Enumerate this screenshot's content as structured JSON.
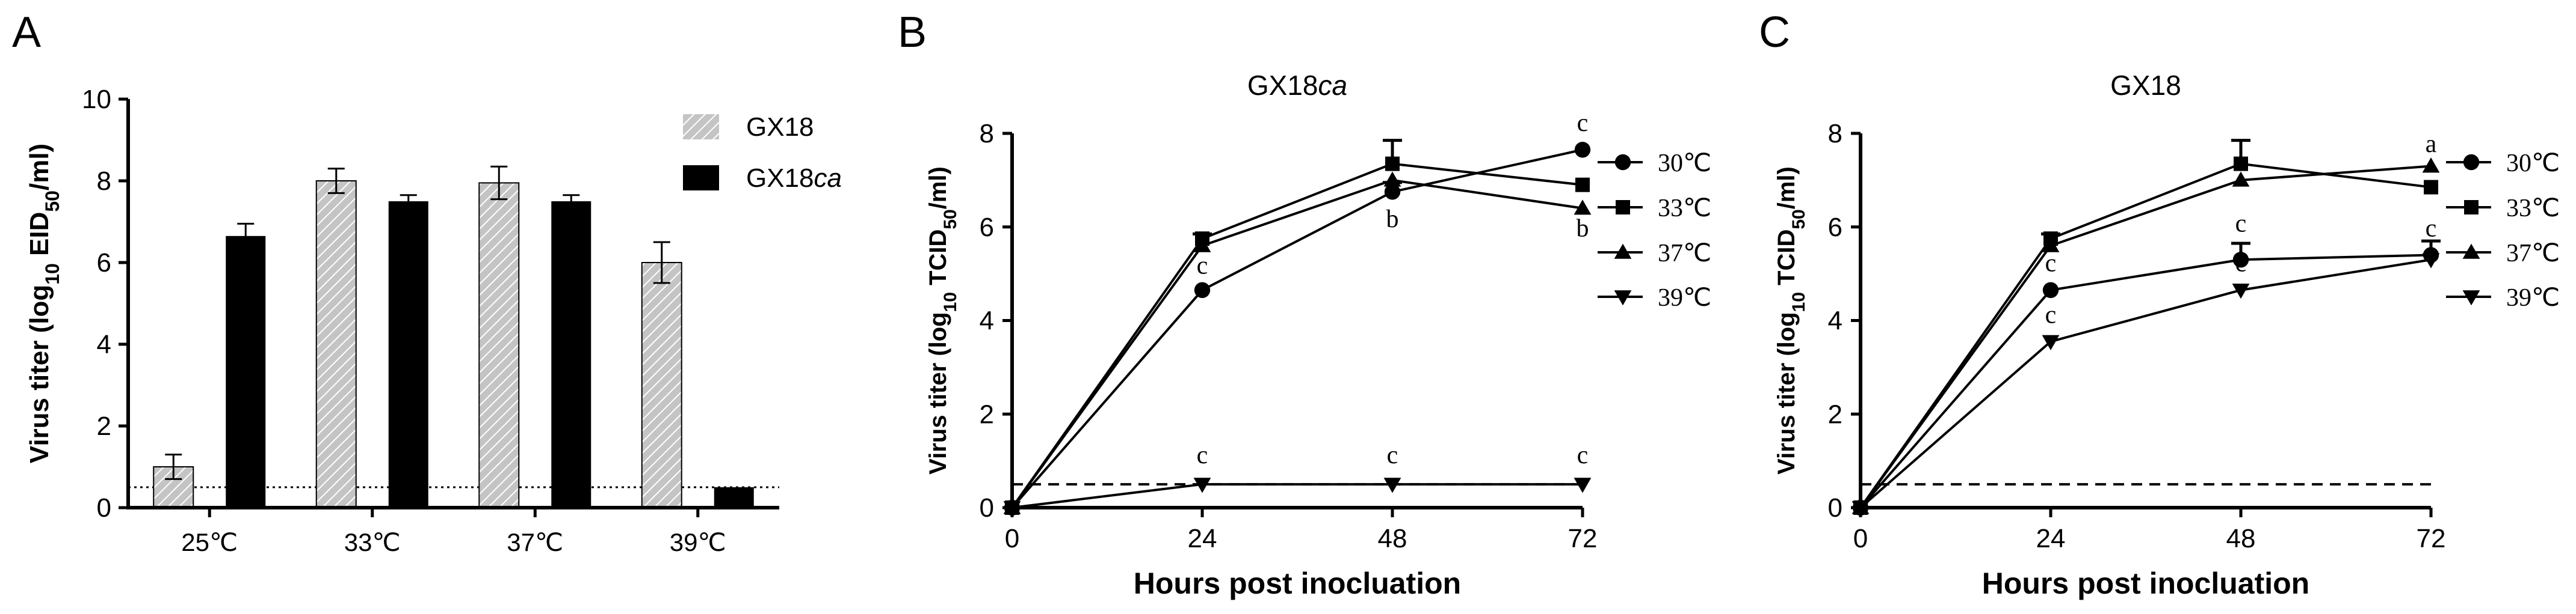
{
  "chart_data": [
    {
      "panel": "A",
      "type": "bar",
      "title": "",
      "ylabel": "Virus titer (log10 EID50/ml)",
      "ylabel_parts": [
        "Virus titer (log",
        "10",
        " EID",
        "50",
        "/ml)"
      ],
      "xlabel": "",
      "ylim": [
        0,
        10
      ],
      "yticks": [
        "0",
        "2",
        "4",
        "6",
        "8",
        "10"
      ],
      "categories": [
        "25℃",
        "33℃",
        "37℃",
        "39℃"
      ],
      "detection_limit": 0.5,
      "legend_position": "top-right",
      "series": [
        {
          "name": "GX18",
          "name_parts": [
            "GX18",
            ""
          ],
          "color": "#9a9a9a",
          "pattern": "hatched",
          "values": [
            1.0,
            8.0,
            7.95,
            6.0
          ],
          "errors": [
            0.3,
            0.3,
            0.4,
            0.5
          ]
        },
        {
          "name": "GX18ca",
          "name_parts": [
            "GX18",
            "ca"
          ],
          "color": "#000000",
          "pattern": "solid",
          "values": [
            6.65,
            7.5,
            7.5,
            0.5
          ],
          "errors": [
            0.3,
            0.15,
            0.15,
            0
          ]
        }
      ]
    },
    {
      "panel": "B",
      "type": "line",
      "title": "GX18ca",
      "title_parts": [
        "GX18",
        "ca"
      ],
      "xlabel": "Hours post inocluation",
      "ylabel": "Virus titer (log10 TCID50/ml)",
      "ylabel_parts": [
        "Virus titer (log",
        "10",
        " TCID",
        "50",
        "/ml)"
      ],
      "x": [
        0,
        24,
        48,
        72
      ],
      "xticks": [
        "0",
        "24",
        "48",
        "72"
      ],
      "ylim": [
        0,
        8
      ],
      "yticks": [
        "0",
        "2",
        "4",
        "6",
        "8"
      ],
      "detection_limit": 0.5,
      "legend_position": "right",
      "series": [
        {
          "name": "30℃",
          "marker": "circle",
          "values": [
            0,
            4.65,
            6.75,
            7.65
          ],
          "errors": [
            0,
            0,
            0.2,
            0
          ]
        },
        {
          "name": "33℃",
          "marker": "square",
          "values": [
            0,
            5.75,
            7.35,
            6.9
          ],
          "errors": [
            0,
            0.1,
            0.5,
            0
          ]
        },
        {
          "name": "37℃",
          "marker": "triangle-up",
          "values": [
            0,
            5.6,
            7.0,
            6.4
          ],
          "errors": [
            0,
            0,
            0,
            0
          ]
        },
        {
          "name": "39℃",
          "marker": "triangle-down",
          "values": [
            0,
            0.5,
            0.5,
            0.5
          ],
          "errors": [
            0,
            0,
            0,
            0
          ]
        }
      ],
      "annotations": [
        {
          "text": "c",
          "x": 24,
          "y": 5.0
        },
        {
          "text": "b",
          "x": 48,
          "y": 6.0
        },
        {
          "text": "c",
          "x": 72,
          "y": 8.05
        },
        {
          "text": "b",
          "x": 72,
          "y": 5.8
        },
        {
          "text": "c",
          "x": 24,
          "y": 0.95
        },
        {
          "text": "c",
          "x": 48,
          "y": 0.95
        },
        {
          "text": "c",
          "x": 72,
          "y": 0.95
        }
      ]
    },
    {
      "panel": "C",
      "type": "line",
      "title": "GX18",
      "title_parts": [
        "GX18",
        ""
      ],
      "xlabel": "Hours post inocluation",
      "ylabel": "Virus titer (log10 TCID50/ml)",
      "ylabel_parts": [
        "Virus titer (log",
        "10",
        " TCID",
        "50",
        "/ml)"
      ],
      "x": [
        0,
        24,
        48,
        72
      ],
      "xticks": [
        "0",
        "24",
        "48",
        "72"
      ],
      "ylim": [
        0,
        8
      ],
      "yticks": [
        "0",
        "2",
        "4",
        "6",
        "8"
      ],
      "detection_limit": 0.5,
      "legend_position": "right",
      "series": [
        {
          "name": "30℃",
          "marker": "circle",
          "values": [
            0,
            4.65,
            5.3,
            5.4
          ],
          "errors": [
            0,
            0,
            0.35,
            0.3
          ]
        },
        {
          "name": "33℃",
          "marker": "square",
          "values": [
            0,
            5.75,
            7.35,
            6.85
          ],
          "errors": [
            0,
            0.1,
            0.5,
            0
          ]
        },
        {
          "name": "37℃",
          "marker": "triangle-up",
          "values": [
            0,
            5.6,
            7.0,
            7.3
          ],
          "errors": [
            0,
            0,
            0,
            0
          ]
        },
        {
          "name": "39℃",
          "marker": "triangle-down",
          "values": [
            0,
            3.55,
            4.65,
            5.3
          ],
          "errors": [
            0,
            0,
            0,
            0
          ]
        }
      ],
      "annotations": [
        {
          "text": "c",
          "x": 24,
          "y": 5.05
        },
        {
          "text": "c",
          "x": 48,
          "y": 5.9
        },
        {
          "text": "c",
          "x": 72,
          "y": 5.8
        },
        {
          "text": "a",
          "x": 72,
          "y": 7.6
        },
        {
          "text": "c",
          "x": 24,
          "y": 3.95
        },
        {
          "text": "c",
          "x": 48,
          "y": 5.05
        }
      ]
    }
  ],
  "panel_labels": [
    "A",
    "B",
    "C"
  ]
}
